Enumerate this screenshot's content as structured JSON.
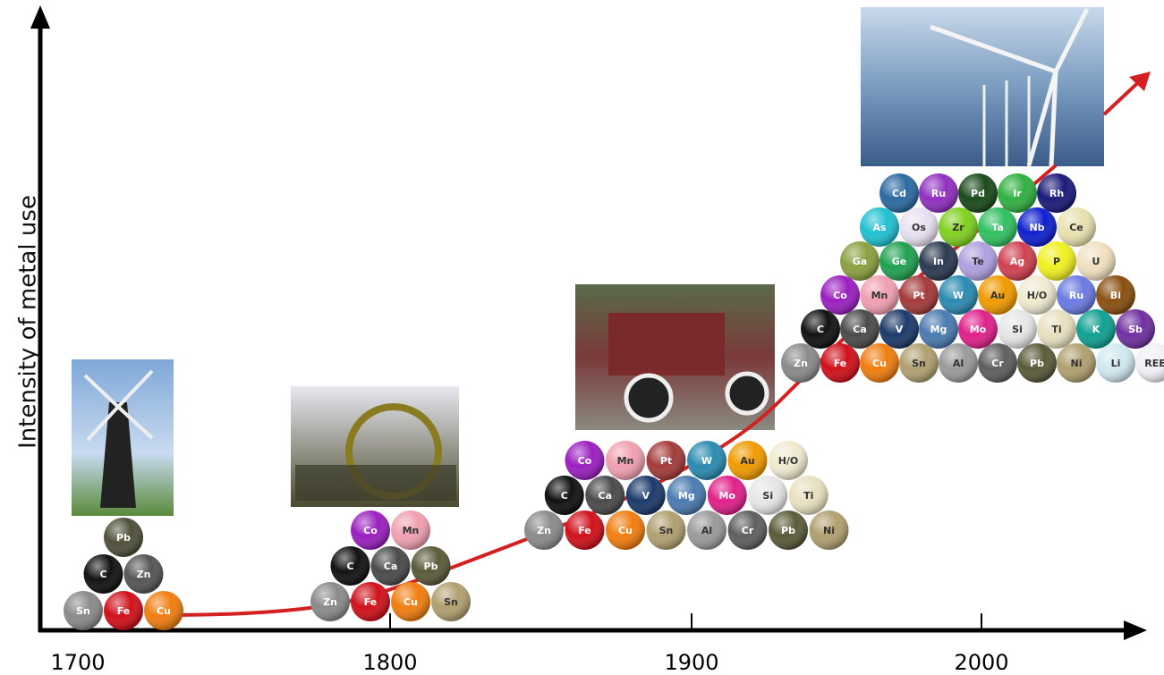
{
  "y_axis_label": "Intensity of metal use",
  "x_ticks": [
    "1700",
    "1800",
    "1900",
    "2000"
  ],
  "clusters": [
    {
      "rows": [
        [
          {
            "symbol": "Pb",
            "color": "#4f4f3a"
          }
        ],
        [
          {
            "symbol": "C",
            "color": "#111111"
          },
          {
            "symbol": "Zn",
            "color": "#555555"
          }
        ],
        [
          {
            "symbol": "Sn",
            "color": "#8a8a8a"
          },
          {
            "symbol": "Fe",
            "color": "#d0101a"
          },
          {
            "symbol": "Cu",
            "color": "#f07d10"
          }
        ]
      ]
    },
    {
      "rows": [
        [
          {
            "symbol": "Co",
            "color": "#9b1fc0"
          },
          {
            "symbol": "Mn",
            "color": "#f0a0b0"
          }
        ],
        [
          {
            "symbol": "C",
            "color": "#111111"
          },
          {
            "symbol": "Ca",
            "color": "#4a4a4a"
          },
          {
            "symbol": "Pb",
            "color": "#5a5a3a"
          }
        ],
        [
          {
            "symbol": "Zn",
            "color": "#8a8a8a"
          },
          {
            "symbol": "Fe",
            "color": "#d0101a"
          },
          {
            "symbol": "Cu",
            "color": "#f07d10"
          },
          {
            "symbol": "Sn",
            "color": "#b0a070"
          }
        ]
      ]
    },
    {
      "rows": [
        [
          {
            "symbol": "Co",
            "color": "#9b1fc0"
          },
          {
            "symbol": "Mn",
            "color": "#f0a0b0"
          },
          {
            "symbol": "Pt",
            "color": "#a33a3a"
          },
          {
            "symbol": "W",
            "color": "#2a8ab0"
          },
          {
            "symbol": "Au",
            "color": "#f09a00"
          },
          {
            "symbol": "H/O",
            "color": "#f0ead0"
          }
        ],
        [
          {
            "symbol": "C",
            "color": "#111111"
          },
          {
            "symbol": "Ca",
            "color": "#4a4a4a"
          },
          {
            "symbol": "V",
            "color": "#1c3a6a"
          },
          {
            "symbol": "Mg",
            "color": "#4a7ab0"
          },
          {
            "symbol": "Mo",
            "color": "#e0208a"
          },
          {
            "symbol": "Si",
            "color": "#e6e6e6"
          },
          {
            "symbol": "Ti",
            "color": "#e8e0c0"
          }
        ],
        [
          {
            "symbol": "Zn",
            "color": "#8a8a8a"
          },
          {
            "symbol": "Fe",
            "color": "#d0101a"
          },
          {
            "symbol": "Cu",
            "color": "#f07d10"
          },
          {
            "symbol": "Sn",
            "color": "#b0a070"
          },
          {
            "symbol": "Al",
            "color": "#9a9a9a"
          },
          {
            "symbol": "Cr",
            "color": "#5e5e5e"
          },
          {
            "symbol": "Pb",
            "color": "#5a5a3a"
          },
          {
            "symbol": "Ni",
            "color": "#b0a070"
          }
        ]
      ]
    },
    {
      "rows": [
        [
          {
            "symbol": "Cd",
            "color": "#2a6aa0"
          },
          {
            "symbol": "Ru",
            "color": "#9030c0"
          },
          {
            "symbol": "Pd",
            "color": "#1a4a1a"
          },
          {
            "symbol": "Ir",
            "color": "#30b040"
          },
          {
            "symbol": "Rh",
            "color": "#1a1a7a"
          }
        ],
        [
          {
            "symbol": "As",
            "color": "#20c0d0"
          },
          {
            "symbol": "Os",
            "color": "#e8e0f0"
          },
          {
            "symbol": "Zr",
            "color": "#80d020"
          },
          {
            "symbol": "Ta",
            "color": "#30c060"
          },
          {
            "symbol": "Nb",
            "color": "#1020d0"
          },
          {
            "symbol": "Ce",
            "color": "#e8e0b0"
          }
        ],
        [
          {
            "symbol": "Ga",
            "color": "#8aa040"
          },
          {
            "symbol": "Ge",
            "color": "#20a050"
          },
          {
            "symbol": "In",
            "color": "#2a3a50"
          },
          {
            "symbol": "Te",
            "color": "#b0a0e0"
          },
          {
            "symbol": "Ag",
            "color": "#d04050"
          },
          {
            "symbol": "P",
            "color": "#f0f020"
          },
          {
            "symbol": "U",
            "color": "#f0e0c0"
          }
        ],
        [
          {
            "symbol": "Co",
            "color": "#9b1fc0"
          },
          {
            "symbol": "Mn",
            "color": "#f0a0b0"
          },
          {
            "symbol": "Pt",
            "color": "#a33a3a"
          },
          {
            "symbol": "W",
            "color": "#2a8ab0"
          },
          {
            "symbol": "Au",
            "color": "#f09a00"
          },
          {
            "symbol": "H/O",
            "color": "#f0ead0"
          },
          {
            "symbol": "Ru",
            "color": "#6a7ae0"
          },
          {
            "symbol": "Bi",
            "color": "#8a5010"
          }
        ],
        [
          {
            "symbol": "C",
            "color": "#111111"
          },
          {
            "symbol": "Ca",
            "color": "#4a4a4a"
          },
          {
            "symbol": "V",
            "color": "#1c3a6a"
          },
          {
            "symbol": "Mg",
            "color": "#4a7ab0"
          },
          {
            "symbol": "Mo",
            "color": "#e0208a"
          },
          {
            "symbol": "Si",
            "color": "#e6e6e6"
          },
          {
            "symbol": "Ti",
            "color": "#e8e0c0"
          },
          {
            "symbol": "K",
            "color": "#10a090"
          },
          {
            "symbol": "Sb",
            "color": "#7030a0"
          }
        ],
        [
          {
            "symbol": "Zn",
            "color": "#8a8a8a"
          },
          {
            "symbol": "Fe",
            "color": "#d0101a"
          },
          {
            "symbol": "Cu",
            "color": "#f07d10"
          },
          {
            "symbol": "Sn",
            "color": "#b0a070"
          },
          {
            "symbol": "Al",
            "color": "#9a9a9a"
          },
          {
            "symbol": "Cr",
            "color": "#5e5e5e"
          },
          {
            "symbol": "Pb",
            "color": "#5a5a3a"
          },
          {
            "symbol": "Ni",
            "color": "#b0a070"
          },
          {
            "symbol": "Li",
            "color": "#d0e8f0"
          },
          {
            "symbol": "REE",
            "color": "#f0f0f8"
          }
        ]
      ]
    }
  ]
}
